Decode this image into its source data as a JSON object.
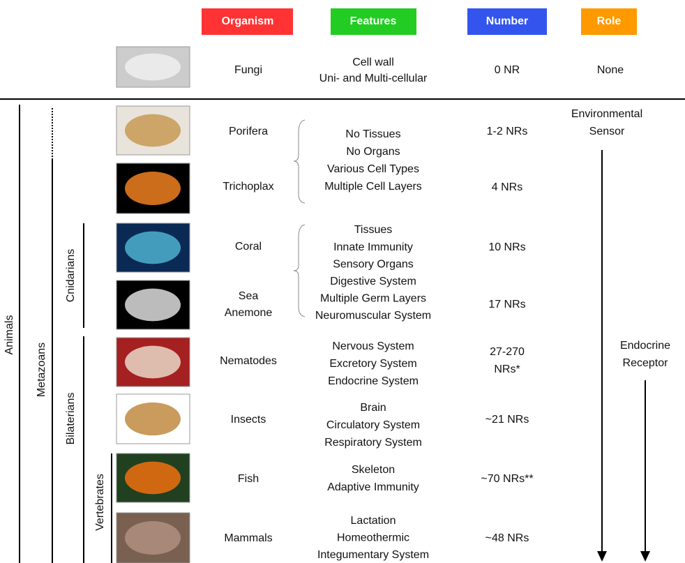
{
  "header": {
    "columns": [
      "Organism",
      "Features",
      "Number",
      "Role"
    ]
  },
  "reference": {
    "organism": "Fungi",
    "features": [
      "Cell wall",
      "Uni- and Multi-cellular"
    ],
    "number": "0 NR",
    "role": "None"
  },
  "rows": [
    {
      "organism": [
        "Porifera"
      ],
      "number": [
        "1-2 NRs"
      ]
    },
    {
      "organism": [
        "Trichoplax"
      ],
      "number": [
        "4 NRs"
      ]
    },
    {
      "organism": [
        "Coral"
      ],
      "number": [
        "10 NRs"
      ]
    },
    {
      "organism": [
        "Sea",
        "Anemone"
      ],
      "number": [
        "17 NRs"
      ]
    },
    {
      "organism": [
        "Nematodes"
      ],
      "number": [
        "27-270",
        "NRs*"
      ]
    },
    {
      "organism": [
        "Insects"
      ],
      "number": [
        "~21 NRs"
      ]
    },
    {
      "organism": [
        "Fish"
      ],
      "number": [
        "~70 NRs**"
      ]
    },
    {
      "organism": [
        "Mammals"
      ],
      "number": [
        "~48 NRs"
      ]
    }
  ],
  "feature_groups": [
    [
      "No Tissues",
      "No Organs",
      "Various Cell Types",
      "Multiple Cell Layers"
    ],
    [
      "Tissues",
      "Innate Immunity",
      "Sensory Organs",
      "Digestive System",
      "Multiple Germ Layers",
      "Neuromuscular System"
    ],
    [
      "Nervous System",
      "Excretory System",
      "Endocrine System"
    ],
    [
      "Brain",
      "Circulatory System",
      "Respiratory System"
    ],
    [
      "Skeleton",
      "Adaptive Immunity"
    ],
    [
      "Lactation",
      "Homeothermic",
      "Integumentary System"
    ]
  ],
  "roles": [
    [
      "Environmental",
      "Sensor"
    ],
    [
      "Endocrine",
      "Receptor"
    ]
  ],
  "clades": [
    "Animals",
    "Metazoans",
    "Cnidarians",
    "Bilaterians",
    "Vertebrates"
  ]
}
